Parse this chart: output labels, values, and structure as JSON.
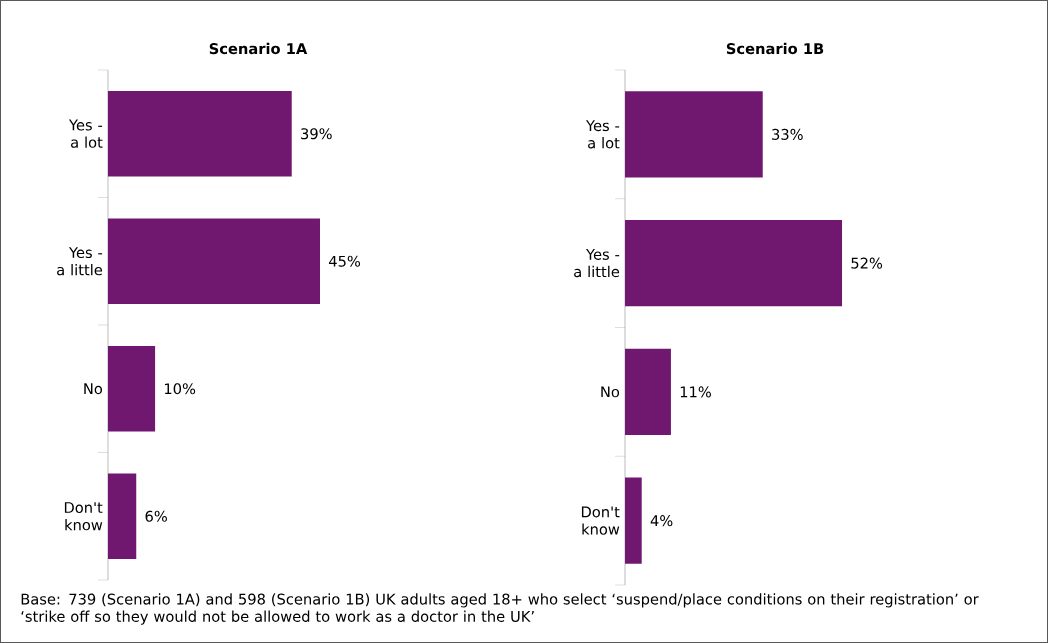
{
  "chart_data": [
    {
      "type": "bar",
      "orientation": "horizontal",
      "title": "Scenario 1A",
      "categories": [
        "Yes - a lot",
        "Yes - a little",
        "No",
        "Don't know"
      ],
      "values": [
        39,
        45,
        10,
        6
      ],
      "value_labels": [
        "39%",
        "45%",
        "10%",
        "6%"
      ],
      "color": "#701870",
      "annotations": [
        "Base: 739 (Scenario 1A) and 598 (Scenario 1B) UK adults aged 18+ who select ‘suspend/place conditions on their registration’ or ‘strike off so they would not be allowed to work as a doctor in the UK’"
      ]
    },
    {
      "type": "bar",
      "orientation": "horizontal",
      "title": "Scenario 1B",
      "categories": [
        "Yes - a lot",
        "Yes - a little",
        "No",
        "Don't know"
      ],
      "values": [
        33,
        52,
        11,
        4
      ],
      "value_labels": [
        "33%",
        "52%",
        "11%",
        "4%"
      ],
      "color": "#701870"
    }
  ]
}
